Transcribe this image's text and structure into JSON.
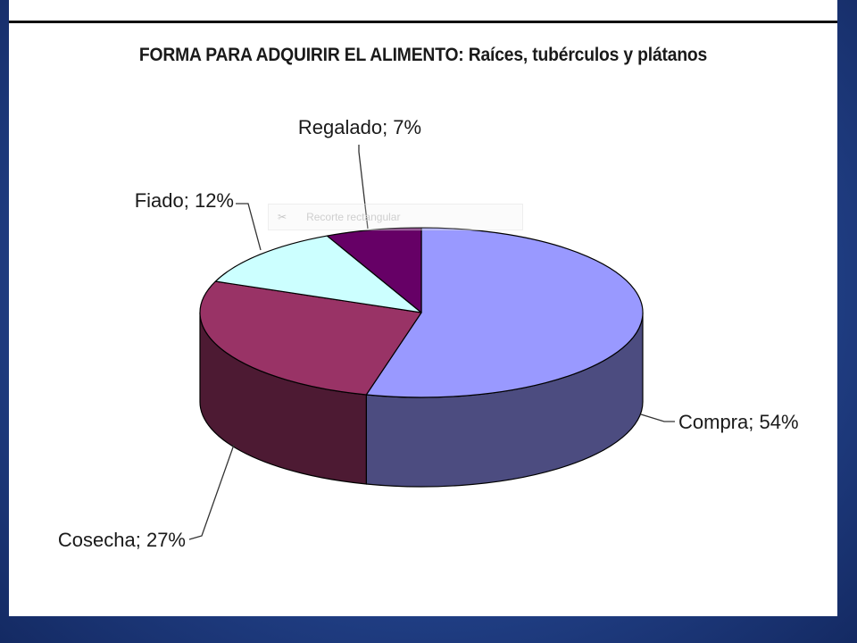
{
  "chart_data": {
    "type": "pie",
    "title": "FORMA PARA ADQUIRIR EL ALIMENTO: Raíces, tubérculos y plátanos",
    "slices": [
      {
        "label": "Compra",
        "value": 54,
        "display": "Compra; 54%",
        "color": "#9999ff",
        "side_color": "#4c4c80"
      },
      {
        "label": "Cosecha",
        "value": 27,
        "display": "Cosecha; 27%",
        "color": "#993366",
        "side_color": "#4d1a33"
      },
      {
        "label": "Fiado",
        "value": 12,
        "display": "Fiado; 12%",
        "color": "#ccffff",
        "side_color": "#668080"
      },
      {
        "label": "Regalado",
        "value": 7,
        "display": "Regalado; 7%",
        "color": "#660066",
        "side_color": "#330033"
      }
    ],
    "style": "3d"
  },
  "snip_tool": {
    "label": "Recorte rectangular"
  },
  "colors": {
    "background": "#23438c",
    "slide": "#ffffff"
  }
}
